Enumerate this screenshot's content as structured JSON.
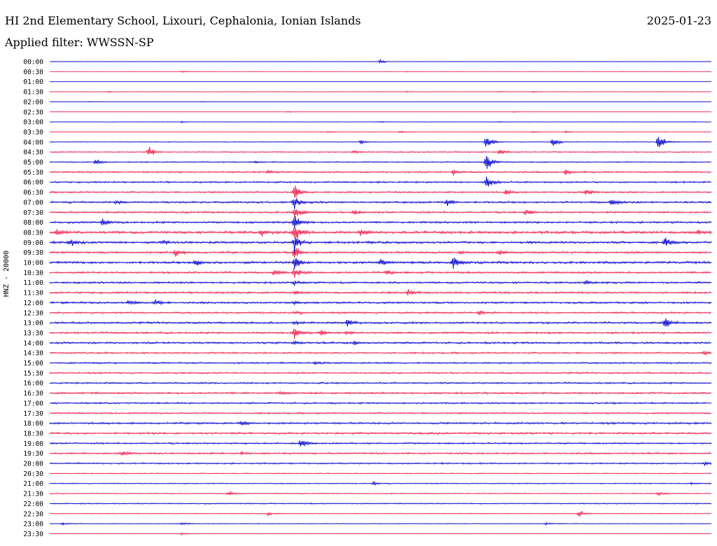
{
  "header": {
    "title": "HI 2nd Elementary School, Lixouri, Cephalonia, Ionian Islands",
    "date": "2025-01-23",
    "filter": "Applied filter: WWSSN-SP"
  },
  "chart_data": {
    "type": "line",
    "title": "HI 2nd Elementary School, Lixouri, Cephalonia, Ionian Islands",
    "date": "2025-01-23",
    "filter": "WWSSN-SP",
    "ylabel": "HNZ - 20000",
    "xlabel": "",
    "colors": [
      "#0000cc",
      "#ee1c4a"
    ],
    "rows": [
      {
        "label": "00:00",
        "noise": 0.02,
        "events": [
          [
            0.5,
            3.5
          ]
        ]
      },
      {
        "label": "00:30",
        "noise": 0.02,
        "events": [
          [
            0.2,
            2.0
          ],
          [
            0.54,
            1.0
          ]
        ]
      },
      {
        "label": "01:00",
        "noise": 0.02,
        "events": []
      },
      {
        "label": "01:30",
        "noise": 0.15,
        "events": [
          [
            0.09,
            1.5
          ],
          [
            0.54,
            1.5
          ],
          [
            0.68,
            1.5
          ],
          [
            0.73,
            1.5
          ]
        ]
      },
      {
        "label": "02:00",
        "noise": 0.03,
        "events": [
          [
            0.06,
            1.0
          ],
          [
            0.23,
            1.0
          ]
        ]
      },
      {
        "label": "02:30",
        "noise": 0.08,
        "events": [
          [
            0.36,
            1.5
          ],
          [
            0.7,
            1.5
          ]
        ]
      },
      {
        "label": "03:00",
        "noise": 0.25,
        "events": [
          [
            0.2,
            1.5
          ],
          [
            0.5,
            1.5
          ],
          [
            0.68,
            1.0
          ]
        ]
      },
      {
        "label": "03:30",
        "noise": 0.3,
        "events": [
          [
            0.42,
            2.0
          ],
          [
            0.53,
            2.0
          ],
          [
            0.73,
            1.5
          ],
          [
            0.78,
            2.0
          ]
        ]
      },
      {
        "label": "04:00",
        "noise": 0.4,
        "events": [
          [
            0.47,
            3.5
          ],
          [
            0.66,
            13.5
          ],
          [
            0.76,
            10.0
          ],
          [
            0.92,
            18.0
          ]
        ]
      },
      {
        "label": "04:30",
        "noise": 0.7,
        "events": [
          [
            0.15,
            9.0
          ],
          [
            0.46,
            3.0
          ],
          [
            0.68,
            4.0
          ]
        ]
      },
      {
        "label": "05:00",
        "noise": 0.7,
        "events": [
          [
            0.07,
            6.0
          ],
          [
            0.31,
            1.5
          ],
          [
            0.66,
            18.0
          ]
        ]
      },
      {
        "label": "05:30",
        "noise": 1.0,
        "events": [
          [
            0.33,
            3.0
          ],
          [
            0.61,
            5.0
          ],
          [
            0.78,
            5.0
          ]
        ]
      },
      {
        "label": "06:00",
        "noise": 1.0,
        "events": [
          [
            0.66,
            13.0
          ]
        ]
      },
      {
        "label": "06:30",
        "noise": 1.0,
        "events": [
          [
            0.37,
            14.0
          ],
          [
            0.69,
            5.0
          ],
          [
            0.81,
            6.0
          ]
        ]
      },
      {
        "label": "07:00",
        "noise": 1.2,
        "events": [
          [
            0.1,
            3.0
          ],
          [
            0.37,
            14.0
          ],
          [
            0.6,
            7.0
          ],
          [
            0.85,
            7.0
          ]
        ]
      },
      {
        "label": "07:30",
        "noise": 1.1,
        "events": [
          [
            0.37,
            14.0
          ],
          [
            0.46,
            4.0
          ],
          [
            0.72,
            6.0
          ]
        ]
      },
      {
        "label": "08:00",
        "noise": 1.2,
        "events": [
          [
            0.08,
            6.0
          ],
          [
            0.37,
            14.0
          ]
        ]
      },
      {
        "label": "08:30",
        "noise": 1.6,
        "events": [
          [
            0.01,
            6.0
          ],
          [
            0.32,
            6.0
          ],
          [
            0.37,
            16.0
          ],
          [
            0.47,
            5.0
          ],
          [
            0.98,
            4.0
          ]
        ]
      },
      {
        "label": "09:00",
        "noise": 1.4,
        "events": [
          [
            0.03,
            8.0
          ],
          [
            0.17,
            3.0
          ],
          [
            0.37,
            16.0
          ],
          [
            0.93,
            8.0
          ]
        ]
      },
      {
        "label": "09:30",
        "noise": 1.3,
        "events": [
          [
            0.19,
            7.0
          ],
          [
            0.37,
            12.0
          ],
          [
            0.62,
            4.0
          ],
          [
            0.68,
            4.0
          ]
        ]
      },
      {
        "label": "10:00",
        "noise": 1.4,
        "events": [
          [
            0.22,
            8.0
          ],
          [
            0.37,
            12.0
          ],
          [
            0.5,
            6.0
          ],
          [
            0.61,
            10.0
          ]
        ]
      },
      {
        "label": "10:30",
        "noise": 1.2,
        "events": [
          [
            0.34,
            5.0
          ],
          [
            0.37,
            10.0
          ],
          [
            0.51,
            3.0
          ]
        ]
      },
      {
        "label": "11:00",
        "noise": 1.2,
        "events": [
          [
            0.37,
            3.0
          ],
          [
            0.81,
            4.0
          ]
        ]
      },
      {
        "label": "11:30",
        "noise": 1.2,
        "events": [
          [
            0.54,
            6.0
          ],
          [
            0.37,
            3.0
          ]
        ]
      },
      {
        "label": "12:00",
        "noise": 1.2,
        "events": [
          [
            0.12,
            5.0
          ],
          [
            0.16,
            5.0
          ],
          [
            0.37,
            3.0
          ]
        ]
      },
      {
        "label": "12:30",
        "noise": 1.1,
        "events": [
          [
            0.37,
            3.0
          ],
          [
            0.65,
            6.0
          ]
        ]
      },
      {
        "label": "13:00",
        "noise": 1.2,
        "events": [
          [
            0.37,
            3.0
          ],
          [
            0.45,
            6.0
          ],
          [
            0.93,
            10.0
          ]
        ]
      },
      {
        "label": "13:30",
        "noise": 1.2,
        "events": [
          [
            0.37,
            9.0
          ],
          [
            0.41,
            5.0
          ],
          [
            0.45,
            3.0
          ]
        ]
      },
      {
        "label": "14:00",
        "noise": 1.2,
        "events": [
          [
            0.37,
            3.0
          ],
          [
            0.46,
            3.0
          ]
        ]
      },
      {
        "label": "14:30",
        "noise": 1.0,
        "events": [
          [
            0.99,
            4.0
          ]
        ]
      },
      {
        "label": "15:00",
        "noise": 1.0,
        "events": [
          [
            0.4,
            3.0
          ]
        ]
      },
      {
        "label": "15:30",
        "noise": 1.0,
        "events": []
      },
      {
        "label": "16:00",
        "noise": 1.0,
        "events": []
      },
      {
        "label": "16:30",
        "noise": 1.2,
        "events": [
          [
            0.35,
            2.0
          ]
        ]
      },
      {
        "label": "17:00",
        "noise": 1.0,
        "events": []
      },
      {
        "label": "17:30",
        "noise": 1.0,
        "events": []
      },
      {
        "label": "18:00",
        "noise": 1.2,
        "events": [
          [
            0.29,
            3.0
          ]
        ]
      },
      {
        "label": "18:30",
        "noise": 1.2,
        "events": []
      },
      {
        "label": "19:00",
        "noise": 1.0,
        "events": [
          [
            0.38,
            8.0
          ]
        ]
      },
      {
        "label": "19:30",
        "noise": 1.1,
        "events": [
          [
            0.11,
            4.0
          ],
          [
            0.29,
            3.0
          ]
        ]
      },
      {
        "label": "20:00",
        "noise": 0.9,
        "events": [
          [
            0.99,
            3.0
          ]
        ]
      },
      {
        "label": "20:30",
        "noise": 0.6,
        "events": []
      },
      {
        "label": "21:00",
        "noise": 0.6,
        "events": [
          [
            0.49,
            3.0
          ],
          [
            0.97,
            2.0
          ]
        ]
      },
      {
        "label": "21:30",
        "noise": 0.6,
        "events": [
          [
            0.27,
            3.0
          ],
          [
            0.92,
            3.0
          ]
        ]
      },
      {
        "label": "22:00",
        "noise": 0.7,
        "events": []
      },
      {
        "label": "22:30",
        "noise": 0.5,
        "events": [
          [
            0.33,
            3.0
          ],
          [
            0.8,
            6.0
          ]
        ]
      },
      {
        "label": "23:00",
        "noise": 0.4,
        "events": [
          [
            0.02,
            2.0
          ],
          [
            0.2,
            2.0
          ],
          [
            0.75,
            2.0
          ]
        ]
      },
      {
        "label": "23:30",
        "noise": 0.3,
        "events": [
          [
            0.2,
            2.0
          ]
        ]
      }
    ]
  }
}
